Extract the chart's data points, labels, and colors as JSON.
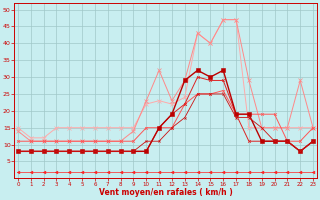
{
  "xlabel": "Vent moyen/en rafales ( km/h )",
  "background_color": "#c8eef0",
  "grid_color": "#a0c8c8",
  "x_ticks": [
    0,
    1,
    2,
    3,
    4,
    5,
    6,
    7,
    8,
    9,
    10,
    11,
    12,
    13,
    14,
    15,
    16,
    17,
    18,
    19,
    20,
    21,
    22,
    23
  ],
  "ylim": [
    0,
    52
  ],
  "xlim": [
    -0.3,
    23.3
  ],
  "yticks": [
    5,
    10,
    15,
    20,
    25,
    30,
    35,
    40,
    45,
    50
  ],
  "figsize": [
    3.2,
    2.0
  ],
  "dpi": 100,
  "series": [
    {
      "color": "#ffaaaa",
      "linewidth": 0.7,
      "marker": "x",
      "markersize": 2.5,
      "y": [
        15,
        12,
        12,
        15,
        15,
        15,
        15,
        15,
        15,
        15,
        22,
        23,
        22,
        24,
        43,
        40,
        47,
        47,
        15,
        15,
        15,
        15,
        15,
        15
      ]
    },
    {
      "color": "#ff8888",
      "linewidth": 0.7,
      "marker": "x",
      "markersize": 2.5,
      "y": [
        14,
        11,
        11,
        11,
        11,
        11,
        11,
        11,
        11,
        14,
        23,
        32,
        23,
        29,
        43,
        40,
        47,
        47,
        29,
        15,
        15,
        15,
        29,
        15
      ]
    },
    {
      "color": "#ff5555",
      "linewidth": 0.7,
      "marker": "x",
      "markersize": 2,
      "y": [
        11,
        11,
        11,
        11,
        11,
        11,
        11,
        11,
        11,
        11,
        15,
        15,
        15,
        22,
        25,
        25,
        26,
        19,
        19,
        19,
        19,
        11,
        11,
        15
      ]
    },
    {
      "color": "#dd2222",
      "linewidth": 0.7,
      "marker": "x",
      "markersize": 2,
      "y": [
        8,
        8,
        8,
        8,
        8,
        8,
        8,
        8,
        8,
        8,
        8,
        15,
        19,
        22,
        30,
        29,
        29,
        19,
        11,
        11,
        11,
        11,
        8,
        11
      ]
    },
    {
      "color": "#bb0000",
      "linewidth": 1.0,
      "marker": "s",
      "markersize": 2.5,
      "y": [
        8,
        8,
        8,
        8,
        8,
        8,
        8,
        8,
        8,
        8,
        8,
        15,
        19,
        29,
        32,
        30,
        32,
        19,
        19,
        11,
        11,
        11,
        8,
        11
      ]
    },
    {
      "color": "#cc1111",
      "linewidth": 0.6,
      "marker": "x",
      "markersize": 1.5,
      "y": [
        8,
        8,
        8,
        8,
        8,
        8,
        8,
        8,
        8,
        8,
        11,
        11,
        15,
        18,
        25,
        25,
        25,
        18,
        18,
        15,
        11,
        11,
        8,
        11
      ]
    },
    {
      "color": "#ff2222",
      "linewidth": 0.5,
      "marker": "<",
      "markersize": 2,
      "y": [
        2,
        2,
        2,
        2,
        2,
        2,
        2,
        2,
        2,
        2,
        2,
        2,
        2,
        2,
        2,
        2,
        2,
        2,
        2,
        2,
        2,
        2,
        2,
        2
      ]
    }
  ]
}
